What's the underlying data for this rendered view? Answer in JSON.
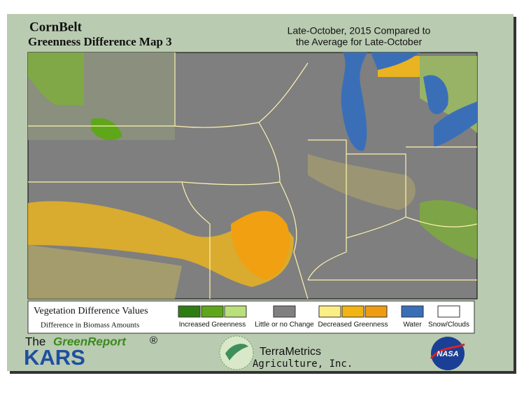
{
  "header": {
    "title": "CornBelt",
    "subtitle": "Greenness Difference Map 3",
    "period_line1": "Late-October, 2015 Compared to",
    "period_line2": "the Average for Late-October"
  },
  "legend": {
    "title": "Vegetation Difference Values",
    "subtitle": "Difference in Biomass Amounts",
    "groups": [
      {
        "label": "Increased Greenness",
        "colors": [
          "#2e7d12",
          "#5fa61a",
          "#b9e07a"
        ]
      },
      {
        "label": "Little or no Change",
        "colors": [
          "#808080"
        ]
      },
      {
        "label": "Decreased Greenness",
        "colors": [
          "#fbee84",
          "#f2b412",
          "#ee9c12"
        ]
      },
      {
        "label": "Water",
        "colors": [
          "#3a6fb8"
        ]
      },
      {
        "label": "Snow/Clouds",
        "colors": [
          "#ffffff"
        ]
      }
    ]
  },
  "footer": {
    "greenreport_prefix": "The",
    "greenreport_name": "GreenReport",
    "greenreport_mark": "®",
    "kars": "KARS",
    "terrametrics": "TerraMetrics",
    "terrametrics_sub": "Agriculture, Inc.",
    "nasa": "NASA"
  }
}
